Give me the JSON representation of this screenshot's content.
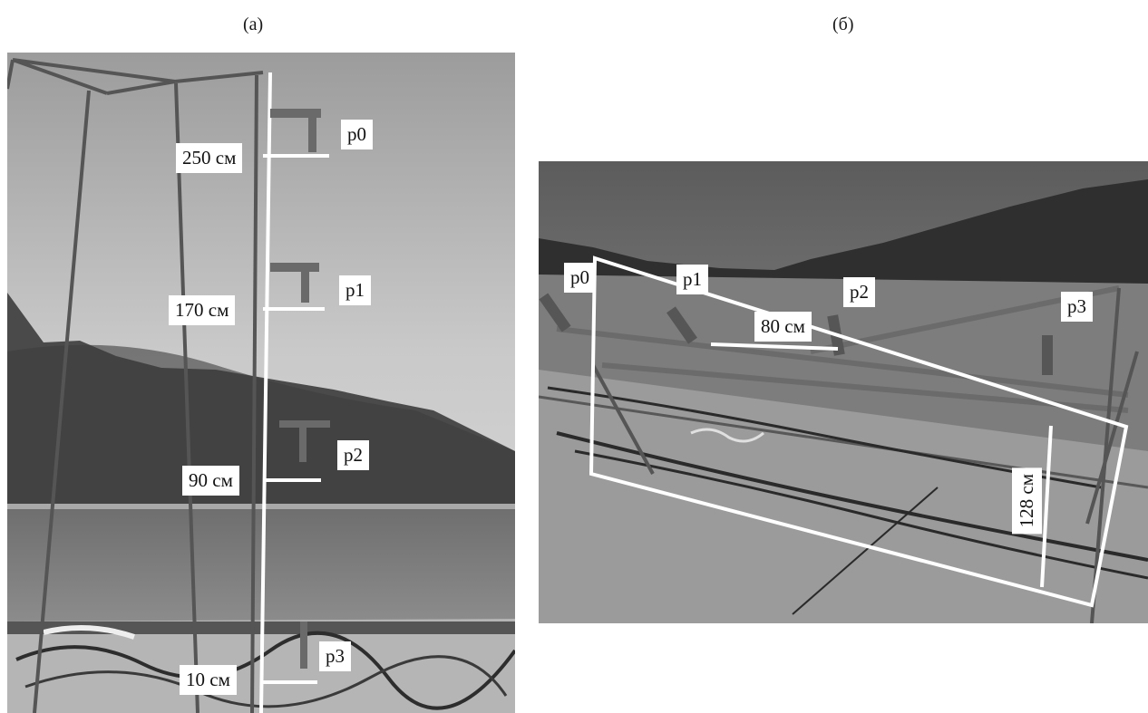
{
  "captions": {
    "left": "(а)",
    "right": "(б)"
  },
  "panel_a": {
    "sensors": [
      "p0",
      "p1",
      "p2",
      "p3"
    ],
    "heights": [
      "250 см",
      "170 см",
      "90 см",
      "10 см"
    ]
  },
  "panel_b": {
    "sensors": [
      "p0",
      "p1",
      "p2",
      "p3"
    ],
    "spacing": "80 см",
    "width": "128 см"
  }
}
